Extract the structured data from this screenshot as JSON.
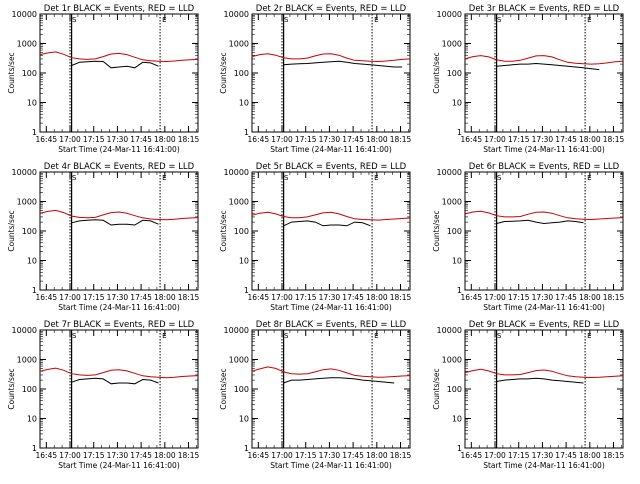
{
  "figure": {
    "title_suffix": "BLACK = Events, RED = LLD",
    "x_axis_label": "Start Time (24-Mar-11 16:41:00)",
    "y_axis_label": "Counts/sec",
    "x_tick_labels": [
      "16:45",
      "17:00",
      "17:15",
      "17:30",
      "17:45",
      "18:00",
      "18:15"
    ],
    "y_tick_labels": [
      "1",
      "10",
      "100",
      "1000",
      "10000"
    ],
    "x_range_minutes": [
      0,
      100
    ],
    "y_range": [
      1,
      10000
    ],
    "x_ticks_minutes": [
      4,
      19,
      34,
      49,
      64,
      79,
      94
    ],
    "vertical_markers_minutes": [
      19,
      20,
      76
    ],
    "marker_letters": [
      "S",
      "E"
    ]
  },
  "chart_data": [
    {
      "type": "line",
      "title": "Det 1r BLACK = Events, RED = LLD",
      "panel": "Det 1r",
      "x_minutes": [
        0,
        5,
        10,
        15,
        20,
        25,
        30,
        35,
        40,
        45,
        50,
        55,
        60,
        65,
        70,
        75,
        80,
        85,
        90,
        95,
        100
      ],
      "series": [
        {
          "name": "Events",
          "color": "#000000",
          "values": [
            null,
            null,
            null,
            null,
            180,
            230,
            240,
            250,
            245,
            150,
            160,
            170,
            150,
            230,
            220,
            170,
            null,
            null,
            null,
            null,
            null
          ]
        },
        {
          "name": "LLD",
          "color": "#cc0000",
          "values": [
            420,
            480,
            520,
            430,
            330,
            300,
            290,
            300,
            360,
            440,
            460,
            420,
            340,
            280,
            260,
            250,
            245,
            255,
            270,
            280,
            290
          ]
        }
      ]
    },
    {
      "type": "line",
      "title": "Det 2r BLACK = Events, RED = LLD",
      "panel": "Det 2r",
      "x_minutes": [
        0,
        5,
        10,
        15,
        20,
        25,
        30,
        35,
        40,
        45,
        50,
        55,
        60,
        65,
        70,
        75,
        80,
        85,
        90,
        95,
        100
      ],
      "series": [
        {
          "name": "Events",
          "color": "#000000",
          "values": [
            null,
            null,
            null,
            null,
            190,
            200,
            205,
            210,
            220,
            230,
            240,
            250,
            230,
            210,
            200,
            190,
            180,
            170,
            160,
            160,
            null
          ]
        },
        {
          "name": "LLD",
          "color": "#cc0000",
          "values": [
            360,
            420,
            450,
            400,
            330,
            300,
            300,
            320,
            380,
            440,
            450,
            400,
            320,
            270,
            260,
            250,
            245,
            255,
            270,
            290,
            300
          ]
        }
      ]
    },
    {
      "type": "line",
      "title": "Det 3r BLACK = Events, RED = LLD",
      "panel": "Det 3r",
      "x_minutes": [
        0,
        5,
        10,
        15,
        20,
        25,
        30,
        35,
        40,
        45,
        50,
        55,
        60,
        65,
        70,
        75,
        80,
        85,
        90,
        95,
        100
      ],
      "series": [
        {
          "name": "Events",
          "color": "#000000",
          "values": [
            null,
            null,
            null,
            null,
            170,
            180,
            190,
            200,
            200,
            210,
            200,
            190,
            180,
            170,
            160,
            150,
            140,
            130,
            null,
            null,
            null
          ]
        },
        {
          "name": "LLD",
          "color": "#cc0000",
          "values": [
            300,
            360,
            390,
            350,
            280,
            250,
            250,
            270,
            320,
            380,
            390,
            350,
            280,
            230,
            215,
            205,
            200,
            205,
            220,
            240,
            250
          ]
        }
      ]
    },
    {
      "type": "line",
      "title": "Det 4r BLACK = Events, RED = LLD",
      "panel": "Det 4r",
      "x_minutes": [
        0,
        5,
        10,
        15,
        20,
        25,
        30,
        35,
        40,
        45,
        50,
        55,
        60,
        65,
        70,
        75,
        80,
        85,
        90,
        95,
        100
      ],
      "series": [
        {
          "name": "Events",
          "color": "#000000",
          "values": [
            null,
            null,
            null,
            null,
            190,
            220,
            230,
            240,
            230,
            160,
            170,
            170,
            160,
            230,
            220,
            170,
            null,
            null,
            null,
            null,
            null
          ]
        },
        {
          "name": "LLD",
          "color": "#cc0000",
          "values": [
            400,
            460,
            500,
            420,
            320,
            290,
            280,
            290,
            350,
            420,
            440,
            400,
            330,
            280,
            255,
            245,
            240,
            250,
            265,
            275,
            285
          ]
        }
      ]
    },
    {
      "type": "line",
      "title": "Det 5r BLACK = Events, RED = LLD",
      "panel": "Det 5r",
      "x_minutes": [
        0,
        5,
        10,
        15,
        20,
        25,
        30,
        35,
        40,
        45,
        50,
        55,
        60,
        65,
        70,
        75,
        80,
        85,
        90,
        95,
        100
      ],
      "series": [
        {
          "name": "Events",
          "color": "#000000",
          "values": [
            null,
            null,
            null,
            null,
            150,
            200,
            210,
            220,
            200,
            150,
            160,
            160,
            150,
            200,
            190,
            150,
            null,
            null,
            null,
            null,
            null
          ]
        },
        {
          "name": "LLD",
          "color": "#cc0000",
          "values": [
            340,
            400,
            430,
            380,
            310,
            280,
            280,
            300,
            350,
            410,
            430,
            380,
            310,
            260,
            245,
            240,
            235,
            245,
            255,
            265,
            275
          ]
        }
      ]
    },
    {
      "type": "line",
      "title": "Det 6r BLACK = Events, RED = LLD",
      "panel": "Det 6r",
      "x_minutes": [
        0,
        5,
        10,
        15,
        20,
        25,
        30,
        35,
        40,
        45,
        50,
        55,
        60,
        65,
        70,
        75,
        80,
        85,
        90,
        95,
        100
      ],
      "series": [
        {
          "name": "Events",
          "color": "#000000",
          "values": [
            null,
            null,
            null,
            null,
            180,
            210,
            215,
            220,
            230,
            200,
            180,
            190,
            200,
            220,
            210,
            190,
            null,
            null,
            null,
            null,
            null
          ]
        },
        {
          "name": "LLD",
          "color": "#cc0000",
          "values": [
            380,
            440,
            470,
            410,
            330,
            300,
            300,
            310,
            370,
            430,
            440,
            400,
            330,
            280,
            260,
            250,
            245,
            255,
            265,
            275,
            285
          ]
        }
      ]
    },
    {
      "type": "line",
      "title": "Det 7r BLACK = Events, RED = LLD",
      "panel": "Det 7r",
      "x_minutes": [
        0,
        5,
        10,
        15,
        20,
        25,
        30,
        35,
        40,
        45,
        50,
        55,
        60,
        65,
        70,
        75,
        80,
        85,
        90,
        95,
        100
      ],
      "series": [
        {
          "name": "Events",
          "color": "#000000",
          "values": [
            null,
            null,
            null,
            null,
            170,
            210,
            220,
            230,
            220,
            150,
            160,
            160,
            150,
            210,
            200,
            160,
            null,
            null,
            null,
            null,
            null
          ]
        },
        {
          "name": "LLD",
          "color": "#cc0000",
          "values": [
            400,
            460,
            510,
            430,
            330,
            300,
            290,
            300,
            360,
            430,
            450,
            410,
            340,
            280,
            260,
            250,
            240,
            250,
            265,
            275,
            285
          ]
        }
      ]
    },
    {
      "type": "line",
      "title": "Det 8r BLACK = Events, RED = LLD",
      "panel": "Det 8r",
      "x_minutes": [
        0,
        5,
        10,
        15,
        20,
        25,
        30,
        35,
        40,
        45,
        50,
        55,
        60,
        65,
        70,
        75,
        80,
        85,
        90,
        95,
        100
      ],
      "series": [
        {
          "name": "Events",
          "color": "#000000",
          "values": [
            null,
            null,
            null,
            null,
            160,
            200,
            200,
            210,
            220,
            230,
            240,
            240,
            230,
            220,
            200,
            190,
            180,
            170,
            160,
            null,
            null
          ]
        },
        {
          "name": "LLD",
          "color": "#cc0000",
          "values": [
            400,
            480,
            560,
            500,
            380,
            330,
            320,
            330,
            380,
            450,
            480,
            430,
            350,
            290,
            270,
            260,
            250,
            255,
            265,
            275,
            285
          ]
        }
      ]
    },
    {
      "type": "line",
      "title": "Det 9r BLACK = Events, RED = LLD",
      "panel": "Det 9r",
      "x_minutes": [
        0,
        5,
        10,
        15,
        20,
        25,
        30,
        35,
        40,
        45,
        50,
        55,
        60,
        65,
        70,
        75,
        80,
        85,
        90,
        95,
        100
      ],
      "series": [
        {
          "name": "Events",
          "color": "#000000",
          "values": [
            null,
            null,
            null,
            null,
            180,
            200,
            210,
            220,
            220,
            230,
            220,
            200,
            190,
            180,
            170,
            160,
            null,
            null,
            null,
            null,
            null
          ]
        },
        {
          "name": "LLD",
          "color": "#cc0000",
          "values": [
            360,
            420,
            470,
            410,
            330,
            300,
            300,
            310,
            360,
            420,
            440,
            400,
            330,
            280,
            260,
            250,
            245,
            250,
            260,
            270,
            280
          ]
        }
      ]
    }
  ]
}
